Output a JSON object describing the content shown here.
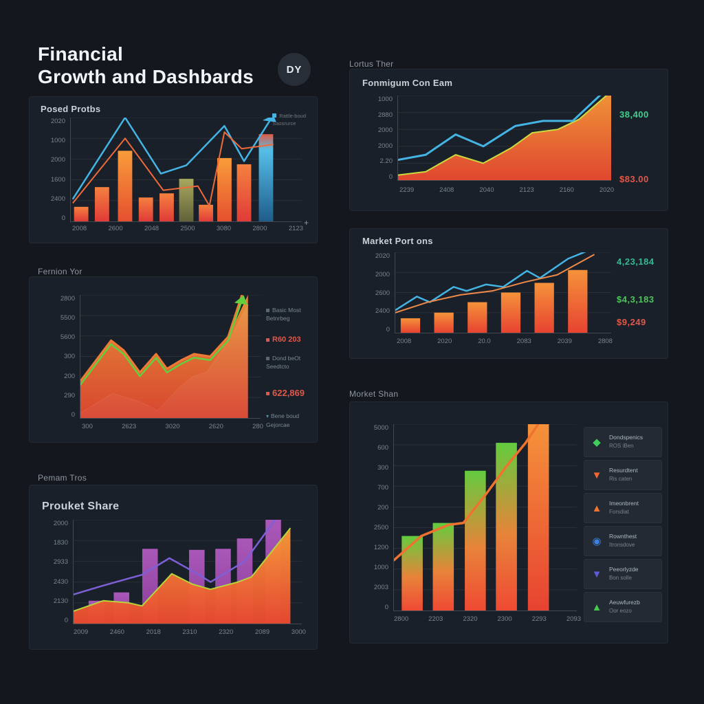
{
  "page": {
    "title_line1": "Financial",
    "title_line2": "Growth and Dashbards",
    "badge": "DY",
    "labels": {
      "lortus": "Lortus Ther",
      "fernion": "Fernion Yor",
      "pemam": "Pemam Tros",
      "morket": "Morket Shan"
    },
    "plus_mark": "+"
  },
  "colors": {
    "background": "#14181e",
    "panel": "#1a2029",
    "blue": "#44b4e4",
    "orange": "#f0722f",
    "red": "#e2453c",
    "green": "#62cf3f",
    "purple_bar": "#9c4fa8",
    "purple_line": "#7e5fd8",
    "value_green": "#3fcf8e",
    "value_red": "#e0584a",
    "olive": "#9a9a55"
  },
  "posed_legend": {
    "line1": "Rattle-boud",
    "line2": "Saosrurce"
  },
  "fonmigum_values": {
    "v1": "38,400",
    "v2": "$83.00"
  },
  "market_values": {
    "v1": "4,23,184",
    "v2": "$4,3,183",
    "v3": "$9,249"
  },
  "fernion_annotations": {
    "a1_line1": "Basic Most",
    "a1_line2": "Betnrbeg",
    "a2": "R60 203",
    "a3_line1": "Dond beOt",
    "a3_line2": "Seedtcto",
    "a4": "622,869",
    "a5_line1": "Bene boud",
    "a5_line2": "Gejorcae"
  },
  "morket_legend": {
    "items": [
      {
        "icon": "kite-icon",
        "glyph": "◆",
        "color": "#3fcf5a",
        "title": "Dondspenics",
        "sub": "ROS iBen"
      },
      {
        "icon": "triangle-down-icon",
        "glyph": "▼",
        "color": "#f2662e",
        "title": "Resurdtent",
        "sub": "Ris caten"
      },
      {
        "icon": "mountain-icon",
        "glyph": "▲",
        "color": "#f2742e",
        "title": "Imeonbrent",
        "sub": "Forsdiat"
      },
      {
        "icon": "ring-icon",
        "glyph": "◉",
        "color": "#3b82e0",
        "title": "Rownthest",
        "sub": "Itronsdove"
      },
      {
        "icon": "triangle-down-icon",
        "glyph": "▼",
        "color": "#5b5bd6",
        "title": "Peeorlyzde",
        "sub": "Bon solle"
      },
      {
        "icon": "tree-icon",
        "glyph": "▲",
        "color": "#46c94e",
        "title": "Aeuwfurezb",
        "sub": "Oor eozo"
      }
    ]
  },
  "chart_data": [
    {
      "id": "posed",
      "type": "bar",
      "title": "Posed Protbs",
      "note": "values are relative heights (fraction of plot height), axes labels are as printed",
      "y_ticks": [
        "2020",
        "1000",
        "2000",
        "1600",
        "2400",
        "0"
      ],
      "x_ticks": [
        "2008",
        "2600",
        "2048",
        "2500",
        "3080",
        "2800",
        "2123"
      ],
      "bar_w": 0.062,
      "bars": [
        {
          "x": 0.045,
          "v": 0.14,
          "fill": "g-red"
        },
        {
          "x": 0.135,
          "v": 0.33,
          "fill": "g-red"
        },
        {
          "x": 0.235,
          "v": 0.68,
          "fill": "g-orange"
        },
        {
          "x": 0.325,
          "v": 0.23,
          "fill": "g-red"
        },
        {
          "x": 0.415,
          "v": 0.27,
          "fill": "g-red"
        },
        {
          "x": 0.5,
          "v": 0.41,
          "fill": "g-olive"
        },
        {
          "x": 0.585,
          "v": 0.16,
          "fill": "g-red"
        },
        {
          "x": 0.665,
          "v": 0.61,
          "fill": "g-orange"
        },
        {
          "x": 0.75,
          "v": 0.55,
          "fill": "g-red"
        },
        {
          "x": 0.845,
          "v": 0.84,
          "fill": "g-blue-bar"
        }
      ],
      "lines": [
        {
          "name": "blue-series",
          "color": "#44b4e4",
          "w": 2.5,
          "arrow": "blue",
          "points": [
            [
              0.01,
              0.22
            ],
            [
              0.235,
              1.0
            ],
            [
              0.39,
              0.46
            ],
            [
              0.5,
              0.54
            ],
            [
              0.665,
              0.92
            ],
            [
              0.75,
              0.58
            ],
            [
              0.87,
              1.0
            ]
          ]
        },
        {
          "name": "orange-series",
          "color": "#ef6a3a",
          "w": 2,
          "points": [
            [
              0.01,
              0.18
            ],
            [
              0.235,
              0.8
            ],
            [
              0.4,
              0.3
            ],
            [
              0.55,
              0.34
            ],
            [
              0.6,
              0.15
            ],
            [
              0.665,
              0.86
            ],
            [
              0.74,
              0.7
            ],
            [
              0.875,
              0.74
            ]
          ]
        }
      ]
    },
    {
      "id": "fonmigum",
      "type": "area",
      "title": "Fonmigum Con Eam",
      "y_ticks": [
        "1000",
        "2880",
        "2000",
        "2000",
        "2.20",
        "0"
      ],
      "x_ticks": [
        "2239",
        "2408",
        "2040",
        "2123",
        "2160",
        "2020"
      ],
      "areas": [
        {
          "name": "orange-area",
          "fill": "g-orange-area",
          "opacity": 0.96,
          "stroke": "#cadb3f",
          "stroke_w": 2,
          "points": [
            [
              0,
              0.06
            ],
            [
              0.13,
              0.1
            ],
            [
              0.27,
              0.3
            ],
            [
              0.4,
              0.2
            ],
            [
              0.53,
              0.38
            ],
            [
              0.63,
              0.56
            ],
            [
              0.75,
              0.6
            ],
            [
              0.85,
              0.72
            ],
            [
              1.0,
              1.05
            ]
          ]
        }
      ],
      "lines": [
        {
          "name": "blue-series",
          "color": "#44b4e4",
          "w": 3,
          "arrow": "blue",
          "points": [
            [
              0,
              0.24
            ],
            [
              0.13,
              0.3
            ],
            [
              0.27,
              0.54
            ],
            [
              0.4,
              0.4
            ],
            [
              0.55,
              0.64
            ],
            [
              0.68,
              0.7
            ],
            [
              0.82,
              0.7
            ],
            [
              0.98,
              1.08
            ]
          ]
        }
      ]
    },
    {
      "id": "market_portions",
      "type": "bar",
      "title": "Market Port ons",
      "y_ticks": [
        "2020",
        "2000",
        "2600",
        "2400",
        "0"
      ],
      "x_ticks": [
        "2008",
        "2020",
        "20.0",
        "2083",
        "2039",
        "2808"
      ],
      "bar_w": 0.09,
      "bars": [
        {
          "x": 0.07,
          "v": 0.18,
          "fill": "g-orange-red"
        },
        {
          "x": 0.225,
          "v": 0.25,
          "fill": "g-orange-red"
        },
        {
          "x": 0.38,
          "v": 0.38,
          "fill": "g-orange-red"
        },
        {
          "x": 0.535,
          "v": 0.5,
          "fill": "g-orange-red"
        },
        {
          "x": 0.69,
          "v": 0.62,
          "fill": "g-orange-red"
        },
        {
          "x": 0.845,
          "v": 0.78,
          "fill": "g-orange-red"
        }
      ],
      "lines": [
        {
          "name": "blue-series",
          "color": "#44b4e4",
          "w": 2.5,
          "arrow": "blue",
          "points": [
            [
              0,
              0.28
            ],
            [
              0.1,
              0.45
            ],
            [
              0.16,
              0.38
            ],
            [
              0.27,
              0.57
            ],
            [
              0.33,
              0.52
            ],
            [
              0.42,
              0.6
            ],
            [
              0.5,
              0.57
            ],
            [
              0.61,
              0.77
            ],
            [
              0.67,
              0.68
            ],
            [
              0.8,
              0.92
            ],
            [
              0.92,
              1.05
            ]
          ]
        },
        {
          "name": "orange-series",
          "color": "#ef8a4a",
          "w": 2,
          "points": [
            [
              0,
              0.25
            ],
            [
              0.15,
              0.38
            ],
            [
              0.3,
              0.47
            ],
            [
              0.45,
              0.52
            ],
            [
              0.6,
              0.63
            ],
            [
              0.75,
              0.72
            ],
            [
              0.92,
              0.97
            ]
          ]
        }
      ]
    },
    {
      "id": "fernion",
      "type": "area",
      "title": "Fernion Yor",
      "y_ticks": [
        "2800",
        "5500",
        "5600",
        "300",
        "200",
        "290",
        "0"
      ],
      "x_ticks": [
        "300",
        "2623",
        "3020",
        "2620",
        "280"
      ],
      "areas": [
        {
          "name": "blue-area",
          "fill": "g-blue-area",
          "opacity": 0.95,
          "stroke": "#58b8e8",
          "stroke_w": 1.5,
          "points": [
            [
              0,
              0.04
            ],
            [
              0.18,
              0.2
            ],
            [
              0.33,
              0.13
            ],
            [
              0.43,
              0.06
            ],
            [
              0.55,
              0.25
            ],
            [
              0.63,
              0.34
            ],
            [
              0.7,
              0.37
            ],
            [
              0.82,
              0.62
            ],
            [
              0.93,
              0.92
            ]
          ]
        },
        {
          "name": "orange-area",
          "fill": "g-orange-area",
          "opacity": 0.92,
          "points": [
            [
              0,
              0.3
            ],
            [
              0.17,
              0.63
            ],
            [
              0.24,
              0.55
            ],
            [
              0.33,
              0.37
            ],
            [
              0.42,
              0.52
            ],
            [
              0.48,
              0.4
            ],
            [
              0.56,
              0.47
            ],
            [
              0.63,
              0.52
            ],
            [
              0.72,
              0.5
            ],
            [
              0.82,
              0.66
            ],
            [
              0.93,
              1.0
            ]
          ]
        }
      ],
      "lines": [
        {
          "name": "orange-trend",
          "color": "#ef7a35",
          "w": 3,
          "arrow": "orange",
          "points": [
            [
              0,
              0.3
            ],
            [
              0.17,
              0.63
            ],
            [
              0.24,
              0.55
            ],
            [
              0.33,
              0.37
            ],
            [
              0.42,
              0.52
            ],
            [
              0.48,
              0.4
            ],
            [
              0.56,
              0.47
            ],
            [
              0.63,
              0.52
            ],
            [
              0.72,
              0.5
            ],
            [
              0.82,
              0.66
            ],
            [
              0.91,
              1.06
            ]
          ]
        },
        {
          "name": "green-trend",
          "color": "#62cf3f",
          "w": 2.5,
          "arrow": "green",
          "points": [
            [
              0,
              0.27
            ],
            [
              0.17,
              0.6
            ],
            [
              0.24,
              0.52
            ],
            [
              0.33,
              0.34
            ],
            [
              0.42,
              0.49
            ],
            [
              0.48,
              0.37
            ],
            [
              0.56,
              0.44
            ],
            [
              0.63,
              0.49
            ],
            [
              0.72,
              0.47
            ],
            [
              0.82,
              0.63
            ],
            [
              0.9,
              0.97
            ]
          ]
        }
      ]
    },
    {
      "id": "prouket",
      "type": "bar",
      "title": "Prouket Share",
      "areas_over_bars": true,
      "y_ticks": [
        "2000",
        "1830",
        "2933",
        "2430",
        "2130",
        "0"
      ],
      "x_ticks": [
        "2009",
        "2460",
        "2018",
        "2310",
        "2320",
        "2089",
        "3000"
      ],
      "bar_w": 0.068,
      "bars": [
        {
          "x": 0.1,
          "v": 0.22,
          "fill": "g-purple"
        },
        {
          "x": 0.21,
          "v": 0.3,
          "fill": "g-purple"
        },
        {
          "x": 0.335,
          "v": 0.72,
          "fill": "g-purple"
        },
        {
          "x": 0.54,
          "v": 0.71,
          "fill": "g-purple"
        },
        {
          "x": 0.655,
          "v": 0.72,
          "fill": "g-purple"
        },
        {
          "x": 0.75,
          "v": 0.82,
          "fill": "g-purple"
        },
        {
          "x": 0.875,
          "v": 1.0,
          "fill": "g-purple"
        }
      ],
      "areas": [
        {
          "name": "orange-area",
          "fill": "g-orange-area",
          "opacity": 0.97,
          "stroke": "#b7d43b",
          "stroke_w": 2,
          "points": [
            [
              0,
              0.12
            ],
            [
              0.13,
              0.22
            ],
            [
              0.24,
              0.2
            ],
            [
              0.3,
              0.17
            ],
            [
              0.43,
              0.48
            ],
            [
              0.52,
              0.38
            ],
            [
              0.6,
              0.33
            ],
            [
              0.72,
              0.4
            ],
            [
              0.78,
              0.45
            ],
            [
              0.95,
              0.92
            ]
          ]
        }
      ],
      "lines": [
        {
          "name": "purple-trend",
          "color": "#7e5fd8",
          "w": 2.5,
          "arrow": "purple",
          "points": [
            [
              0,
              0.28
            ],
            [
              0.12,
              0.36
            ],
            [
              0.25,
              0.44
            ],
            [
              0.3,
              0.47
            ],
            [
              0.42,
              0.63
            ],
            [
              0.55,
              0.47
            ],
            [
              0.6,
              0.4
            ],
            [
              0.75,
              0.6
            ],
            [
              0.9,
              1.05
            ]
          ]
        }
      ]
    },
    {
      "id": "morket",
      "type": "bar",
      "title": "Morket Shan",
      "y_ticks": [
        "5000",
        "600",
        "300",
        "700",
        "200",
        "2500",
        "1200",
        "1000",
        "2003",
        "0"
      ],
      "x_ticks": [
        "2800",
        "2203",
        "2320",
        "2300",
        "2293",
        "2093"
      ],
      "bar_w": 0.115,
      "bars": [
        {
          "x": 0.1,
          "v": 0.4,
          "fill": "g-green-red"
        },
        {
          "x": 0.27,
          "v": 0.47,
          "fill": "g-green-red"
        },
        {
          "x": 0.445,
          "v": 0.75,
          "fill": "g-green-red"
        },
        {
          "x": 0.615,
          "v": 0.9,
          "fill": "g-green-red"
        },
        {
          "x": 0.79,
          "v": 1.0,
          "fill": "g-orange-red"
        }
      ],
      "lines": [
        {
          "name": "orange-trend",
          "color": "#f0722f",
          "w": 3.5,
          "arrow": "orange",
          "points": [
            [
              0,
              0.27
            ],
            [
              0.15,
              0.4
            ],
            [
              0.3,
              0.46
            ],
            [
              0.38,
              0.47
            ],
            [
              0.5,
              0.62
            ],
            [
              0.62,
              0.78
            ],
            [
              0.72,
              0.9
            ],
            [
              0.83,
              1.06
            ]
          ]
        }
      ]
    }
  ]
}
